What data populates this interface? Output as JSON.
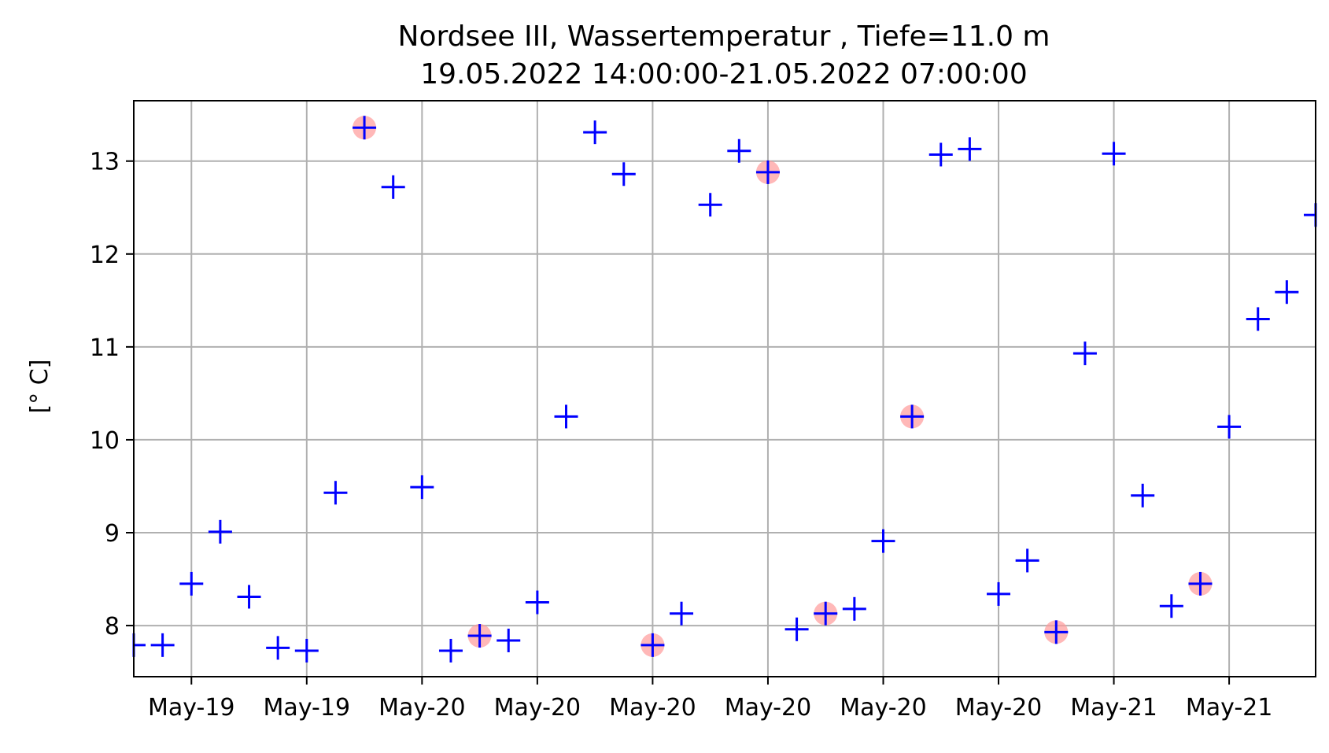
{
  "chart_data": {
    "type": "scatter",
    "title": "Nordsee III, Wassertemperatur , Tiefe=11.0 m",
    "subtitle": "19.05.2022 14:00:00-21.05.2022 07:00:00",
    "xlabel": "",
    "ylabel": "[° C]",
    "x_tick_labels": [
      "May-19",
      "May-19",
      "May-20",
      "May-20",
      "May-20",
      "May-20",
      "May-20",
      "May-20",
      "May-21",
      "May-21"
    ],
    "x_tick_hours": [
      0,
      4,
      8,
      12,
      16,
      20,
      24,
      28,
      32,
      36
    ],
    "xlim_hours": [
      -2,
      39
    ],
    "ylim": [
      7.45,
      13.65
    ],
    "yticks": [
      8,
      9,
      10,
      11,
      12,
      13
    ],
    "grid": true,
    "marker": "+",
    "marker_color": "#0000ff",
    "highlight_color": "#ff9a9a",
    "series": [
      {
        "x_hours": [
          -2,
          -1,
          0,
          1,
          2,
          3,
          4,
          5,
          6,
          7,
          8,
          9,
          10,
          11,
          12,
          13,
          14,
          15,
          16,
          17,
          18,
          19,
          20,
          21,
          22,
          23,
          24,
          25,
          26,
          27,
          28,
          29,
          30,
          31,
          32,
          33,
          34,
          35,
          36,
          37,
          38,
          39
        ],
        "values": [
          7.79,
          7.79,
          8.45,
          9.01,
          8.31,
          7.76,
          7.73,
          9.43,
          13.36,
          12.72,
          9.49,
          7.73,
          7.89,
          7.84,
          8.25,
          10.25,
          13.31,
          12.86,
          7.79,
          8.13,
          12.53,
          13.11,
          12.88,
          7.96,
          8.13,
          8.18,
          8.91,
          10.25,
          13.07,
          13.13,
          8.34,
          8.7,
          7.93,
          10.93,
          13.08,
          9.4,
          8.21,
          8.45,
          10.14,
          11.3,
          11.59,
          12.42
        ]
      }
    ],
    "highlighted_hours": [
      6,
      10,
      16,
      20,
      22,
      25,
      30,
      35
    ]
  }
}
